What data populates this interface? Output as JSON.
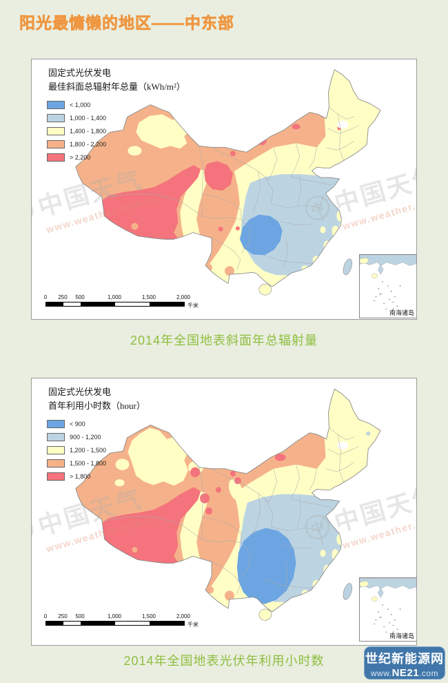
{
  "page": {
    "title": "阳光最慵懒的地区——中东部"
  },
  "colors": {
    "page_bg": "#E9EEE0",
    "accent_orange": "#EF9640",
    "caption_green": "#8FBE3F",
    "badge_blue": "#4076A9",
    "class_blue": "#6CA5E2",
    "class_lightblue": "#BCD4E2",
    "class_yellow": "#FFFFC5",
    "class_orange": "#F5B28A",
    "class_red": "#F4737C"
  },
  "map1": {
    "title_line1": "固定式光伏发电",
    "title_line2": "最佳斜面总辐射年总量（kWh/m²）",
    "legend": [
      {
        "label": "< 1,000",
        "color": "#6CA5E2"
      },
      {
        "label": "1,000 - 1,400",
        "color": "#BCD4E2"
      },
      {
        "label": "1,400 - 1,800",
        "color": "#FFFFC5"
      },
      {
        "label": "1,800 - 2,200",
        "color": "#F5B28A"
      },
      {
        "label": "> 2,200",
        "color": "#F4737C"
      }
    ],
    "scalebar": {
      "ticks": [
        "0",
        "250",
        "500",
        "1,000",
        "1,500",
        "2,000"
      ],
      "unit": "千米"
    },
    "inset_label": "南海诸岛",
    "caption": "2014年全国地表斜面年总辐射量"
  },
  "map2": {
    "title_line1": "固定式光伏发电",
    "title_line2": "首年利用小时数（hour）",
    "legend": [
      {
        "label": "< 900",
        "color": "#6CA5E2"
      },
      {
        "label": "900 - 1,200",
        "color": "#BCD4E2"
      },
      {
        "label": "1,200 - 1,500",
        "color": "#FFFFC5"
      },
      {
        "label": "1,500 - 1,800",
        "color": "#F5B28A"
      },
      {
        "label": "> 1,800",
        "color": "#F4737C"
      }
    ],
    "scalebar": {
      "ticks": [
        "0",
        "250",
        "500",
        "1,000",
        "1,500",
        "2,000"
      ],
      "unit": "千米"
    },
    "inset_label": "南海诸岛",
    "caption": "2014年全国地表光伏年利用小时数"
  },
  "watermark": {
    "brand": "中国天气",
    "url": "www.weather.com.cn",
    "logo_glyph": "中"
  },
  "badge": {
    "title": "世纪新能源网",
    "url_prefix": "www.",
    "url_bold": "NE21",
    "url_suffix": ".com"
  }
}
